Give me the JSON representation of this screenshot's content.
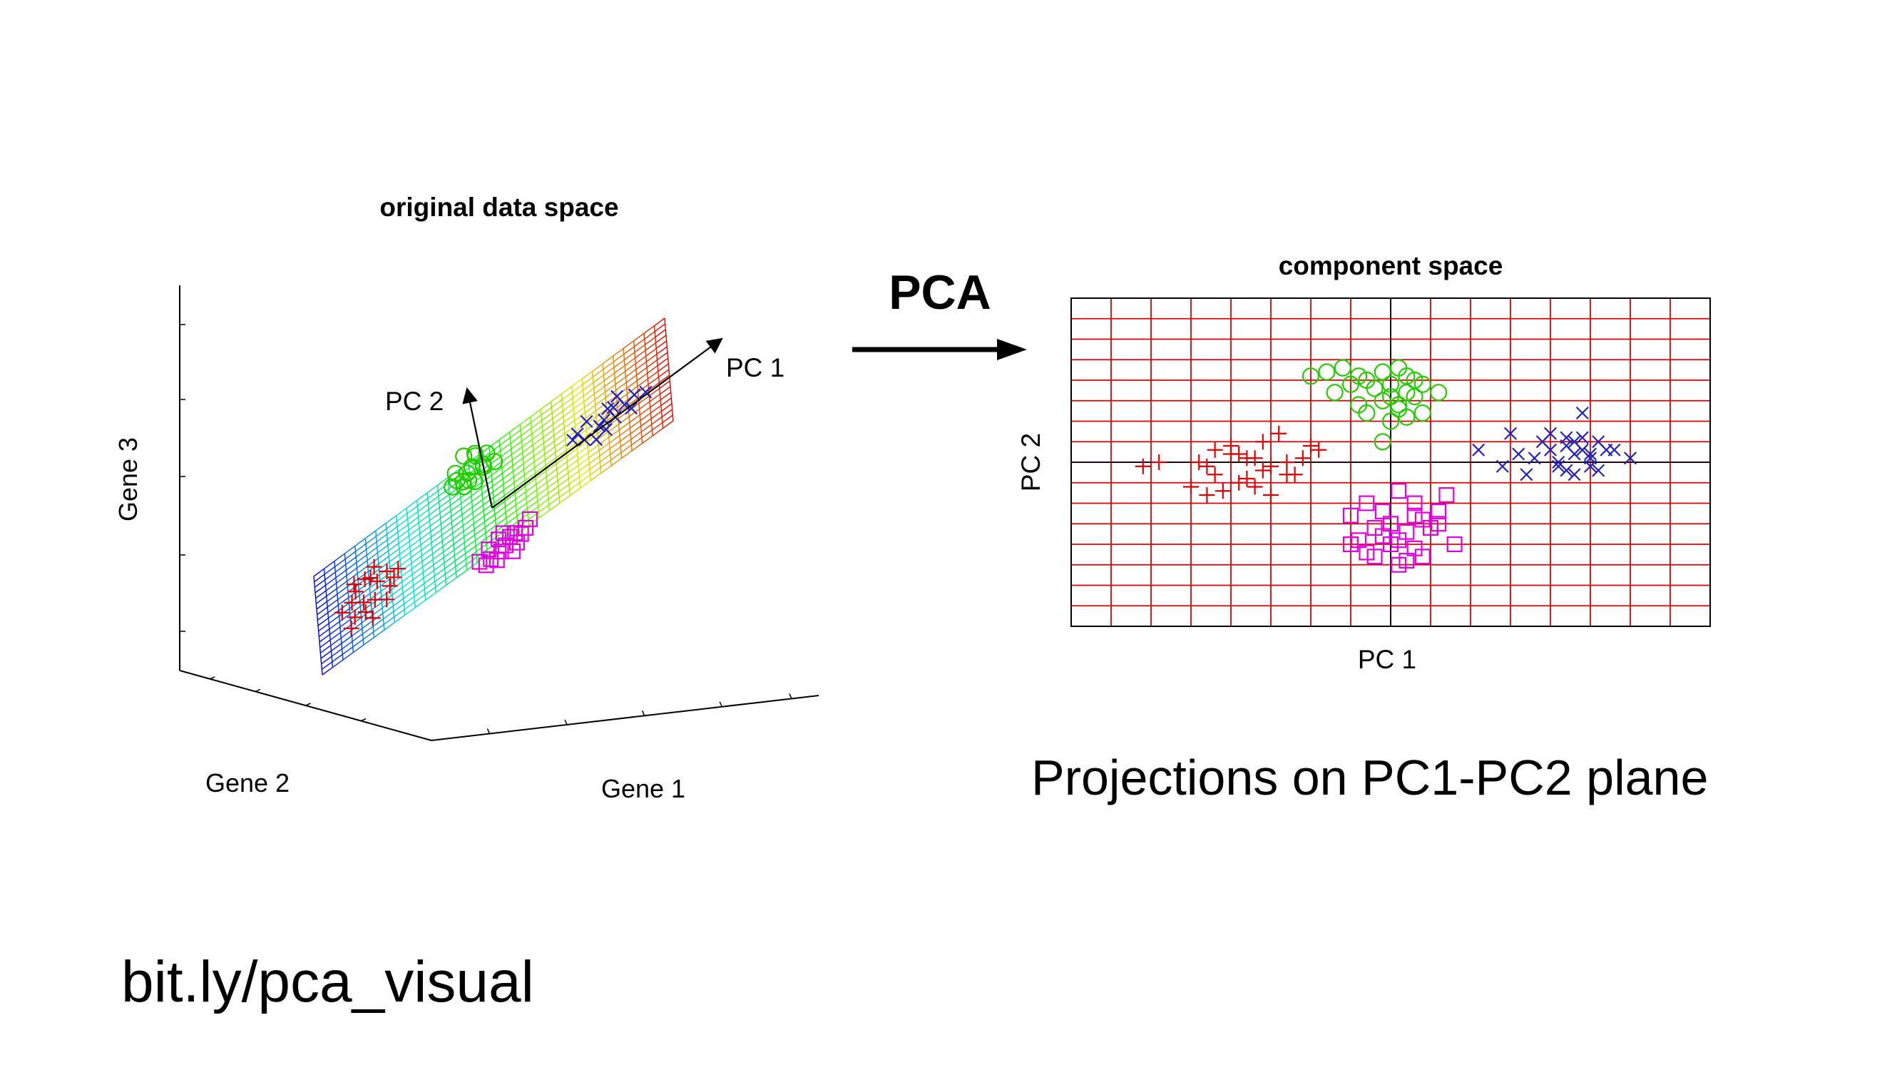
{
  "slide": {
    "caption": "Projections on PC1-PC2 plane",
    "link": "bit.ly/pca_visual",
    "arrow_label": "PCA"
  },
  "colors": {
    "class_plus": "#e00000",
    "class_circle": "#22cc00",
    "class_square": "#e000e0",
    "class_x": "#2020c0",
    "grid": "#e00000",
    "axis": "#000000"
  },
  "chart_data": [
    {
      "type": "scatter",
      "title": "original data space",
      "xlabel": "Gene 1",
      "ylabel": "Gene 2",
      "zlabel": "Gene 3",
      "axis_labels": {
        "pc1": "PC 1",
        "pc2": "PC 2"
      },
      "projection": "3d",
      "surface": "fitted plane spanned by PC 1 and PC 2, colored blue-cyan-yellow-red along PC 1",
      "plane_coords_note": "points given as PC1/PC2 coordinates on the fitted plane",
      "series": [
        {
          "marker": "plus",
          "color": "#e00000",
          "x": [
            -2.9,
            -2.6,
            -2.7,
            -2.4,
            -2.2,
            -2.5,
            -2.8,
            -2.3,
            -2.0,
            -2.6,
            -2.1,
            -2.4,
            -1.9,
            -2.7,
            -2.2,
            -2.5,
            -2.3,
            -2.0,
            -1.8
          ],
          "y": [
            0.2,
            0.6,
            -0.3,
            0.8,
            0.4,
            0.0,
            -0.6,
            -0.2,
            0.5,
            0.9,
            -0.5,
            -0.8,
            0.1,
            0.3,
            1.0,
            -0.4,
            0.7,
            -0.1,
            0.3
          ]
        },
        {
          "marker": "circle",
          "color": "#22cc00",
          "x": [
            -0.6,
            -0.3,
            -0.2,
            -0.5,
            0.0,
            -0.4,
            -0.1,
            -0.3,
            0.1,
            -0.2,
            -0.5,
            -0.3,
            0.2,
            -0.1,
            0.0,
            -0.4,
            -0.2
          ],
          "y": [
            1.8,
            1.6,
            2.0,
            2.2,
            1.7,
            1.5,
            2.4,
            1.9,
            2.1,
            1.4,
            1.9,
            2.6,
            1.6,
            2.3,
            1.8,
            1.7,
            2.0
          ]
        },
        {
          "marker": "square",
          "color": "#e000e0",
          "x": [
            -0.4,
            -0.2,
            0.0,
            0.2,
            0.4,
            -0.1,
            0.1,
            0.3,
            0.5,
            -0.3,
            0.0,
            0.2,
            0.6,
            0.1,
            -0.2,
            0.3
          ],
          "y": [
            -1.6,
            -1.4,
            -1.8,
            -1.5,
            -1.7,
            -2.0,
            -1.2,
            -1.9,
            -1.6,
            -1.9,
            -1.3,
            -2.1,
            -1.4,
            -1.7,
            -1.8,
            -1.5
          ]
        },
        {
          "marker": "x",
          "color": "#2020c0",
          "x": [
            1.6,
            1.9,
            2.1,
            2.4,
            2.6,
            2.2,
            1.8,
            2.5,
            2.8,
            2.3,
            2.0,
            2.7,
            1.7,
            3.0,
            2.4,
            2.2
          ],
          "y": [
            0.3,
            0.6,
            0.1,
            0.4,
            0.2,
            -0.2,
            0.0,
            0.7,
            0.3,
            0.5,
            -0.3,
            -0.1,
            0.4,
            0.1,
            0.0,
            0.2
          ]
        }
      ]
    },
    {
      "type": "scatter",
      "title": "component space",
      "xlabel": "PC 1",
      "ylabel": "PC 2",
      "xlim": [
        -4,
        4
      ],
      "ylim": [
        -4,
        4
      ],
      "grid": true,
      "series": [
        {
          "marker": "plus",
          "color": "#e00000",
          "x": [
            -3.1,
            -2.9,
            -2.5,
            -2.3,
            -2.2,
            -2.0,
            -1.9,
            -1.8,
            -1.7,
            -1.6,
            -1.5,
            -1.3,
            -1.1,
            -0.9,
            -2.4,
            -2.1,
            -1.9,
            -1.6,
            -1.4,
            -1.2,
            -2.2,
            -1.8,
            -1.5,
            -1.0,
            -1.3,
            -1.7,
            -2.0,
            -2.3
          ],
          "y": [
            -0.1,
            0.0,
            -0.6,
            -0.8,
            -0.3,
            0.4,
            0.2,
            -0.4,
            0.1,
            0.5,
            -0.1,
            -0.3,
            0.1,
            0.3,
            0.0,
            -0.7,
            -0.5,
            -0.2,
            0.7,
            -0.3,
            0.3,
            0.1,
            -0.8,
            0.4,
            0.0,
            -0.6,
            0.2,
            -0.1
          ]
        },
        {
          "marker": "circle",
          "color": "#22cc00",
          "x": [
            -1.0,
            -0.8,
            -0.6,
            -0.4,
            -0.3,
            -0.1,
            0.0,
            0.1,
            0.2,
            0.3,
            0.4,
            0.6,
            -0.7,
            -0.5,
            -0.2,
            0.0,
            0.2,
            0.4,
            -0.4,
            -0.1,
            0.1,
            0.3,
            -0.3,
            0.0,
            0.2,
            -0.1,
            0.1
          ],
          "y": [
            2.1,
            2.2,
            2.3,
            2.1,
            2.0,
            2.2,
            1.9,
            2.3,
            2.1,
            2.0,
            1.9,
            1.7,
            1.7,
            1.9,
            1.8,
            1.6,
            1.7,
            1.2,
            1.4,
            1.5,
            1.3,
            1.6,
            1.2,
            1.0,
            1.1,
            0.5,
            1.4
          ]
        },
        {
          "marker": "square",
          "color": "#e000e0",
          "x": [
            -0.3,
            -0.5,
            -0.1,
            0.1,
            0.3,
            0.6,
            0.7,
            -0.2,
            0.0,
            0.2,
            0.4,
            0.5,
            -0.4,
            -0.1,
            0.1,
            0.3,
            0.5,
            0.8,
            -0.5,
            -0.2,
            0.2,
            0.4,
            -0.3,
            0.6,
            0.0,
            0.3,
            0.1
          ],
          "y": [
            -1.0,
            -1.3,
            -1.2,
            -0.7,
            -1.0,
            -1.2,
            -0.8,
            -1.6,
            -1.5,
            -1.7,
            -1.4,
            -1.6,
            -1.9,
            -1.8,
            -1.9,
            -2.1,
            -1.6,
            -2.0,
            -2.0,
            -2.3,
            -2.4,
            -2.3,
            -2.2,
            -1.5,
            -2.0,
            -1.3,
            -2.5
          ]
        },
        {
          "marker": "x",
          "color": "#2020c0",
          "x": [
            1.1,
            1.5,
            1.6,
            1.8,
            2.0,
            2.1,
            2.2,
            2.3,
            2.4,
            2.5,
            2.6,
            1.7,
            1.9,
            2.2,
            2.4,
            2.5,
            2.1,
            2.3,
            2.6,
            2.8,
            3.0,
            2.7,
            2.0,
            2.3,
            2.5,
            1.4,
            2.4,
            2.2
          ],
          "y": [
            0.3,
            0.7,
            0.2,
            0.1,
            0.3,
            0.0,
            -0.2,
            0.2,
            0.3,
            -0.1,
            0.5,
            -0.3,
            0.5,
            0.4,
            0.6,
            0.1,
            -0.1,
            -0.3,
            -0.2,
            0.3,
            0.1,
            0.3,
            0.7,
            0.5,
            0.2,
            -0.1,
            1.2,
            0.6
          ]
        }
      ]
    }
  ]
}
